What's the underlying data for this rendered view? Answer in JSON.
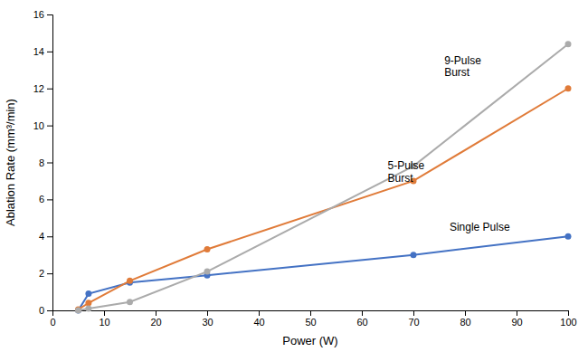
{
  "chart_data": {
    "type": "line",
    "xlabel": "Power (W)",
    "ylabel": "Ablation Rate (mm³/min)",
    "x": [
      5,
      7,
      15,
      30,
      70,
      100
    ],
    "series": [
      {
        "color": "#4472C4",
        "marker": "circle",
        "values": [
          0.0,
          0.9,
          1.5,
          1.9,
          3.0,
          4.0
        ]
      },
      {
        "color": "#E07B39",
        "marker": "circle",
        "values": [
          0.05,
          0.4,
          1.6,
          3.3,
          7.0,
          12.0
        ]
      },
      {
        "color": "#ABABAB",
        "marker": "circle",
        "values": [
          0.0,
          0.1,
          0.45,
          2.1,
          7.8,
          14.4
        ]
      }
    ],
    "annotations": [
      {
        "text": "9-Pulse\nBurst",
        "x": 76,
        "y": 13.2
      },
      {
        "text": "5-Pulse\nBurst",
        "x": 65,
        "y": 7.5
      },
      {
        "text": "Single Pulse",
        "x": 77,
        "y": 4.5
      }
    ],
    "xlim": [
      0,
      100
    ],
    "ylim": [
      0,
      16
    ],
    "xticks": [
      0,
      10,
      20,
      30,
      40,
      50,
      60,
      70,
      80,
      90,
      100
    ],
    "yticks": [
      0,
      2,
      4,
      6,
      8,
      10,
      12,
      14,
      16
    ],
    "grid": false
  }
}
